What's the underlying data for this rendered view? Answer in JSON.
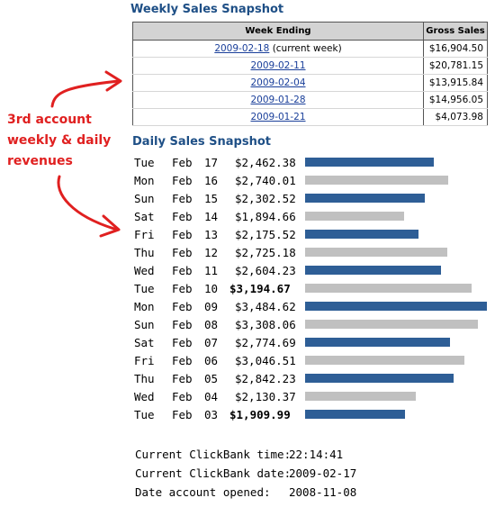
{
  "weekly": {
    "title": "Weekly Sales Snapshot",
    "col_week_ending": "Week Ending",
    "col_gross_sales": "Gross Sales",
    "rows": [
      {
        "date": "2009-02-18",
        "note": "(current week)",
        "gross": "$16,904.50"
      },
      {
        "date": "2009-02-11",
        "gross": "$20,781.15"
      },
      {
        "date": "2009-02-04",
        "gross": "$13,915.84"
      },
      {
        "date": "2009-01-28",
        "gross": "$14,956.05"
      },
      {
        "date": "2009-01-21",
        "gross": "$4,073.98"
      }
    ]
  },
  "daily": {
    "title": "Daily Sales Snapshot",
    "colors": {
      "blue": "#2e5e96",
      "gray": "#c0c0c0"
    },
    "rows": [
      {
        "dow": "Tue",
        "mon": "Feb",
        "day": "17",
        "amount": "$2,462.38",
        "bold": false,
        "color": "blue",
        "value": 2462.38
      },
      {
        "dow": "Mon",
        "mon": "Feb",
        "day": "16",
        "amount": "$2,740.01",
        "bold": false,
        "color": "gray",
        "value": 2740.01
      },
      {
        "dow": "Sun",
        "mon": "Feb",
        "day": "15",
        "amount": "$2,302.52",
        "bold": false,
        "color": "blue",
        "value": 2302.52
      },
      {
        "dow": "Sat",
        "mon": "Feb",
        "day": "14",
        "amount": "$1,894.66",
        "bold": false,
        "color": "gray",
        "value": 1894.66
      },
      {
        "dow": "Fri",
        "mon": "Feb",
        "day": "13",
        "amount": "$2,175.52",
        "bold": false,
        "color": "blue",
        "value": 2175.52
      },
      {
        "dow": "Thu",
        "mon": "Feb",
        "day": "12",
        "amount": "$2,725.18",
        "bold": false,
        "color": "gray",
        "value": 2725.18
      },
      {
        "dow": "Wed",
        "mon": "Feb",
        "day": "11",
        "amount": "$2,604.23",
        "bold": false,
        "color": "blue",
        "value": 2604.23
      },
      {
        "dow": "Tue",
        "mon": "Feb",
        "day": "10",
        "amount": "$3,194.67",
        "bold": true,
        "color": "gray",
        "value": 3194.67
      },
      {
        "dow": "Mon",
        "mon": "Feb",
        "day": "09",
        "amount": "$3,484.62",
        "bold": false,
        "color": "blue",
        "value": 3484.62
      },
      {
        "dow": "Sun",
        "mon": "Feb",
        "day": "08",
        "amount": "$3,308.06",
        "bold": false,
        "color": "gray",
        "value": 3308.06
      },
      {
        "dow": "Sat",
        "mon": "Feb",
        "day": "07",
        "amount": "$2,774.69",
        "bold": false,
        "color": "blue",
        "value": 2774.69
      },
      {
        "dow": "Fri",
        "mon": "Feb",
        "day": "06",
        "amount": "$3,046.51",
        "bold": false,
        "color": "gray",
        "value": 3046.51
      },
      {
        "dow": "Thu",
        "mon": "Feb",
        "day": "05",
        "amount": "$2,842.23",
        "bold": false,
        "color": "blue",
        "value": 2842.23
      },
      {
        "dow": "Wed",
        "mon": "Feb",
        "day": "04",
        "amount": "$2,130.37",
        "bold": false,
        "color": "gray",
        "value": 2130.37
      },
      {
        "dow": "Tue",
        "mon": "Feb",
        "day": "03",
        "amount": "$1,909.99",
        "bold": true,
        "color": "blue",
        "value": 1909.99
      }
    ]
  },
  "info": [
    {
      "label": "Current ClickBank time:",
      "value": "22:14:41"
    },
    {
      "label": "Current ClickBank date:",
      "value": "2009-02-17"
    },
    {
      "label": "Date account opened:",
      "value": "2008-11-08"
    }
  ],
  "annotation": {
    "line1": "3rd account",
    "line2": "weekly & daily",
    "line3": "revenues",
    "color": "#e02020"
  }
}
